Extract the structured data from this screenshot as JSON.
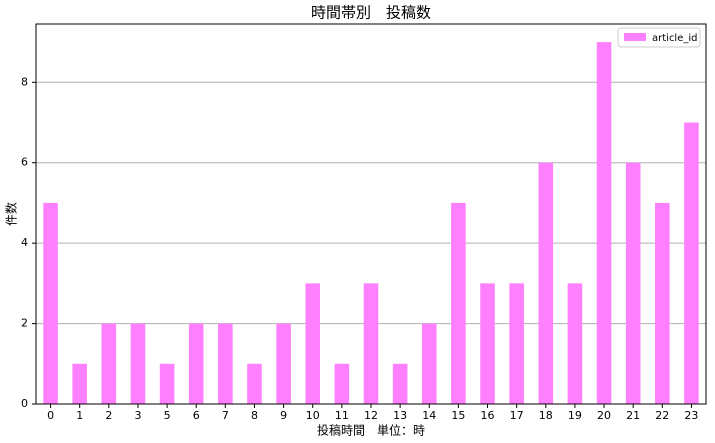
{
  "chart_data": {
    "type": "bar",
    "title": "時間帯別　投稿数",
    "x_label": "投稿時間　単位：時",
    "y_label": "件数",
    "categories": [
      "0",
      "1",
      "2",
      "3",
      "5",
      "6",
      "7",
      "8",
      "9",
      "10",
      "11",
      "12",
      "13",
      "14",
      "15",
      "16",
      "17",
      "18",
      "19",
      "20",
      "21",
      "22",
      "23"
    ],
    "series": [
      {
        "name": "article_id",
        "color": "#ff80ff",
        "values": [
          5,
          1,
          2,
          2,
          1,
          2,
          2,
          1,
          2,
          3,
          1,
          3,
          1,
          2,
          5,
          3,
          3,
          6,
          3,
          9,
          6,
          5,
          7
        ]
      }
    ],
    "ylim": [
      0,
      9.45
    ],
    "yticks": [
      0,
      2,
      4,
      6,
      8
    ],
    "grid": true,
    "legend": "upper right"
  }
}
